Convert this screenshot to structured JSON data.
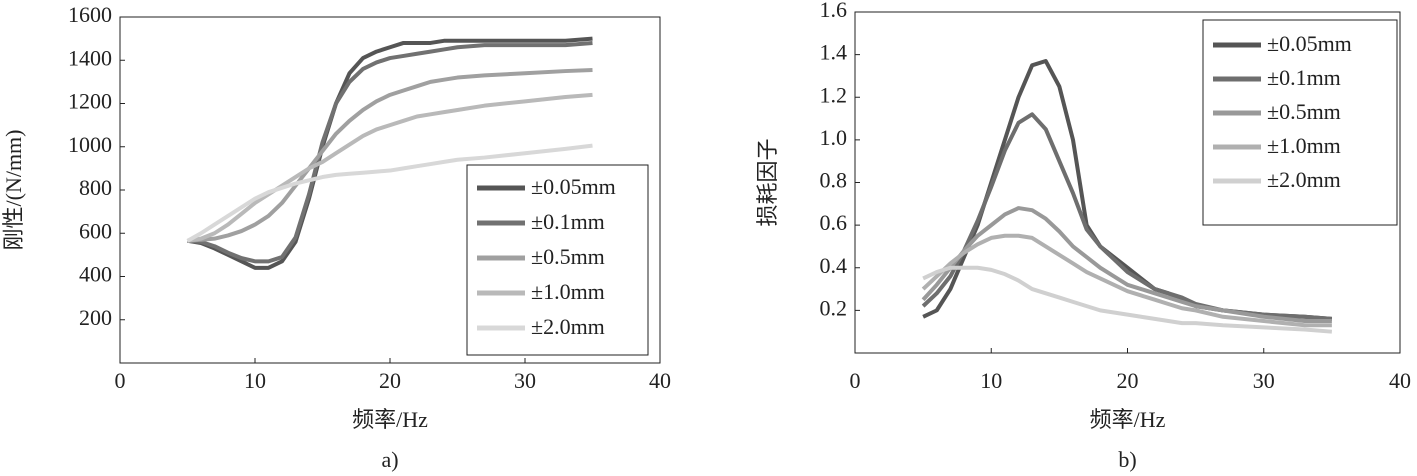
{
  "chart_data": [
    {
      "type": "line",
      "caption": "a)",
      "xlabel": "频率/Hz",
      "ylabel": "刚性/(N/mm)",
      "xlim": [
        0,
        40
      ],
      "xticks": [
        0,
        10,
        20,
        30,
        40
      ],
      "ylim": [
        0,
        1600
      ],
      "yticks": [
        200,
        400,
        600,
        800,
        1000,
        1200,
        1400,
        1600
      ],
      "x": [
        5,
        6,
        7,
        8,
        9,
        10,
        11,
        12,
        13,
        14,
        15,
        16,
        17,
        18,
        19,
        20,
        21,
        22,
        23,
        24,
        25,
        27,
        30,
        33,
        35
      ],
      "series": [
        {
          "name": "±0.05mm",
          "color": "#555555",
          "values": [
            565,
            555,
            530,
            500,
            470,
            440,
            440,
            470,
            560,
            760,
            1000,
            1200,
            1340,
            1410,
            1440,
            1460,
            1480,
            1480,
            1480,
            1490,
            1490,
            1490,
            1490,
            1490,
            1500
          ]
        },
        {
          "name": "±0.1mm",
          "color": "#717171",
          "values": [
            565,
            560,
            540,
            510,
            485,
            470,
            470,
            490,
            580,
            780,
            1020,
            1200,
            1300,
            1360,
            1390,
            1410,
            1420,
            1430,
            1440,
            1450,
            1460,
            1470,
            1470,
            1470,
            1480
          ]
        },
        {
          "name": "±0.5mm",
          "color": "#a0a0a0",
          "values": [
            565,
            570,
            575,
            590,
            610,
            640,
            680,
            740,
            820,
            900,
            980,
            1060,
            1120,
            1170,
            1210,
            1240,
            1260,
            1280,
            1300,
            1310,
            1320,
            1330,
            1340,
            1350,
            1355
          ]
        },
        {
          "name": "±1.0mm",
          "color": "#b9b9b9",
          "values": [
            565,
            575,
            600,
            640,
            690,
            740,
            780,
            820,
            860,
            900,
            930,
            970,
            1010,
            1050,
            1080,
            1100,
            1120,
            1140,
            1150,
            1160,
            1170,
            1190,
            1210,
            1230,
            1240
          ]
        },
        {
          "name": "±2.0mm",
          "color": "#d8d8d8",
          "values": [
            565,
            600,
            640,
            680,
            720,
            760,
            790,
            810,
            830,
            845,
            860,
            870,
            875,
            880,
            885,
            890,
            900,
            910,
            920,
            930,
            940,
            950,
            970,
            990,
            1005
          ]
        }
      ]
    },
    {
      "type": "line",
      "caption": "b)",
      "xlabel": "频率/Hz",
      "ylabel": "损耗因子",
      "xlim": [
        0,
        40
      ],
      "xticks": [
        0,
        10,
        20,
        30,
        40
      ],
      "ylim": [
        0,
        1.6
      ],
      "yticks": [
        0.2,
        0.4,
        0.6,
        0.8,
        {
          "value": 1,
          "label": "1.0"
        },
        1.2,
        1.4,
        1.6
      ],
      "x": [
        5,
        6,
        7,
        8,
        9,
        10,
        11,
        12,
        13,
        14,
        15,
        16,
        17,
        18,
        19,
        20,
        21,
        22,
        23,
        24,
        25,
        27,
        30,
        33,
        35
      ],
      "series": [
        {
          "name": "±0.05mm",
          "color": "#555555",
          "values": [
            0.17,
            0.2,
            0.3,
            0.45,
            0.6,
            0.8,
            1.0,
            1.2,
            1.35,
            1.37,
            1.25,
            1.0,
            0.6,
            0.5,
            0.45,
            0.4,
            0.35,
            0.3,
            0.28,
            0.25,
            0.22,
            0.2,
            0.18,
            0.17,
            0.16
          ]
        },
        {
          "name": "±0.1mm",
          "color": "#6e6e6e",
          "values": [
            0.22,
            0.28,
            0.36,
            0.48,
            0.62,
            0.78,
            0.95,
            1.08,
            1.12,
            1.05,
            0.9,
            0.75,
            0.58,
            0.5,
            0.44,
            0.38,
            0.34,
            0.3,
            0.28,
            0.26,
            0.23,
            0.2,
            0.18,
            0.17,
            0.16
          ]
        },
        {
          "name": "±0.5mm",
          "color": "#999999",
          "values": [
            0.25,
            0.32,
            0.4,
            0.48,
            0.55,
            0.6,
            0.65,
            0.68,
            0.67,
            0.63,
            0.57,
            0.5,
            0.45,
            0.4,
            0.36,
            0.32,
            0.3,
            0.28,
            0.26,
            0.24,
            0.22,
            0.2,
            0.17,
            0.15,
            0.15
          ]
        },
        {
          "name": "±1.0mm",
          "color": "#b0b0b0",
          "values": [
            0.3,
            0.36,
            0.42,
            0.47,
            0.51,
            0.54,
            0.55,
            0.55,
            0.54,
            0.5,
            0.46,
            0.42,
            0.38,
            0.35,
            0.32,
            0.29,
            0.27,
            0.25,
            0.23,
            0.21,
            0.2,
            0.17,
            0.15,
            0.13,
            0.13
          ]
        },
        {
          "name": "±2.0mm",
          "color": "#d0d0d0",
          "values": [
            0.35,
            0.38,
            0.4,
            0.4,
            0.4,
            0.39,
            0.37,
            0.34,
            0.3,
            0.28,
            0.26,
            0.24,
            0.22,
            0.2,
            0.19,
            0.18,
            0.17,
            0.16,
            0.15,
            0.14,
            0.14,
            0.13,
            0.12,
            0.11,
            0.1
          ]
        }
      ]
    }
  ]
}
